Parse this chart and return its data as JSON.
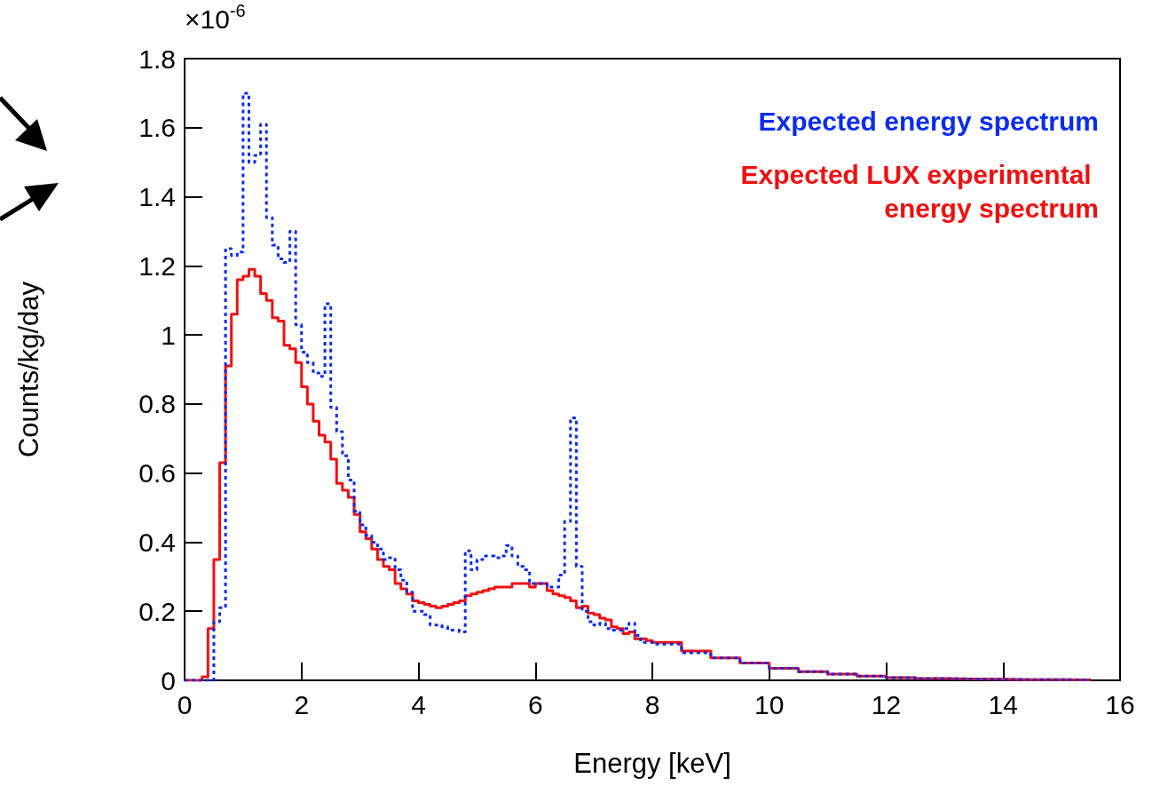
{
  "chart_data": {
    "type": "step",
    "xlabel": "Energy [keV]",
    "ylabel": "Counts/kg/day",
    "annotations": [
      "×10$^{-6}$"
    ],
    "xlim": [
      0,
      16
    ],
    "xticks": [
      0,
      2,
      4,
      6,
      8,
      10,
      12,
      14,
      16
    ],
    "ylim": [
      0,
      1.8
    ],
    "yticks": [
      0,
      0.2,
      0.4,
      0.6,
      0.8,
      1,
      1.2,
      1.4,
      1.6,
      1.8
    ],
    "grid": false,
    "legend": "top right",
    "marker": "none",
    "x": [
      0,
      0.1,
      0.2,
      0.3,
      0.4,
      0.5,
      0.6,
      0.7,
      0.8,
      0.9,
      1,
      1.1,
      1.2,
      1.3,
      1.4,
      1.5,
      1.6,
      1.7,
      1.8,
      1.9,
      2,
      2.1,
      2.2,
      2.3,
      2.4,
      2.5,
      2.6,
      2.7,
      2.8,
      2.9,
      3,
      3.1,
      3.2,
      3.3,
      3.4,
      3.5,
      3.6,
      3.7,
      3.8,
      3.9,
      4,
      4.1,
      4.2,
      4.3,
      4.4,
      4.5,
      4.6,
      4.7,
      4.8,
      4.9,
      5,
      5.1,
      5.2,
      5.3,
      5.4,
      5.5,
      5.6,
      5.7,
      5.8,
      5.9,
      6,
      6.1,
      6.2,
      6.3,
      6.4,
      6.5,
      6.6,
      6.7,
      6.8,
      6.9,
      7,
      7.1,
      7.2,
      7.3,
      7.4,
      7.5,
      7.6,
      7.7,
      7.8,
      7.9,
      8,
      8.5,
      9,
      9.5,
      10,
      10.5,
      11,
      11.5,
      12,
      12.5,
      13,
      13.5,
      14,
      14.5,
      15,
      15.5
    ],
    "series": [
      {
        "name": "Expected energy spectrum",
        "color": "#0a2cf0",
        "line_style": "dashed",
        "values": [
          0,
          0,
          0,
          0,
          0,
          0.17,
          0.21,
          1.25,
          1.23,
          1.24,
          1.7,
          1.5,
          1.52,
          1.61,
          1.34,
          1.26,
          1.22,
          1.21,
          1.3,
          1.03,
          0.95,
          0.92,
          0.89,
          0.88,
          1.09,
          0.79,
          0.72,
          0.65,
          0.58,
          0.49,
          0.45,
          0.42,
          0.4,
          0.38,
          0.35,
          0.355,
          0.32,
          0.29,
          0.255,
          0.2,
          0.2,
          0.19,
          0.16,
          0.16,
          0.155,
          0.145,
          0.145,
          0.14,
          0.375,
          0.32,
          0.35,
          0.36,
          0.36,
          0.355,
          0.36,
          0.39,
          0.36,
          0.33,
          0.32,
          0.28,
          0.28,
          0.28,
          0.27,
          0.27,
          0.305,
          0.46,
          0.76,
          0.33,
          0.2,
          0.17,
          0.16,
          0.165,
          0.15,
          0.145,
          0.145,
          0.15,
          0.165,
          0.13,
          0.11,
          0.11,
          0.105,
          0.08,
          0.065,
          0.05,
          0.035,
          0.025,
          0.018,
          0.012,
          0.008,
          0.005,
          0.004,
          0.003,
          0.002,
          0.002,
          0.001,
          0.001
        ]
      },
      {
        "name": "Expected LUX experimental energy spectrum",
        "color": "#f01010",
        "line_style": "solid",
        "values": [
          0,
          0,
          0,
          0.01,
          0.15,
          0.35,
          0.63,
          0.91,
          1.06,
          1.16,
          1.17,
          1.19,
          1.17,
          1.12,
          1.1,
          1.05,
          1.04,
          0.97,
          0.96,
          0.92,
          0.85,
          0.8,
          0.75,
          0.71,
          0.69,
          0.64,
          0.57,
          0.55,
          0.53,
          0.48,
          0.43,
          0.41,
          0.38,
          0.35,
          0.33,
          0.32,
          0.28,
          0.265,
          0.25,
          0.23,
          0.225,
          0.22,
          0.215,
          0.21,
          0.215,
          0.22,
          0.225,
          0.23,
          0.245,
          0.25,
          0.255,
          0.26,
          0.265,
          0.27,
          0.27,
          0.27,
          0.28,
          0.28,
          0.28,
          0.27,
          0.28,
          0.28,
          0.26,
          0.25,
          0.245,
          0.24,
          0.23,
          0.21,
          0.215,
          0.195,
          0.19,
          0.18,
          0.175,
          0.155,
          0.15,
          0.135,
          0.14,
          0.12,
          0.12,
          0.115,
          0.11,
          0.085,
          0.065,
          0.05,
          0.035,
          0.025,
          0.018,
          0.012,
          0.008,
          0.005,
          0.004,
          0.003,
          0.002,
          0.002,
          0.001,
          0.001
        ]
      }
    ]
  }
}
